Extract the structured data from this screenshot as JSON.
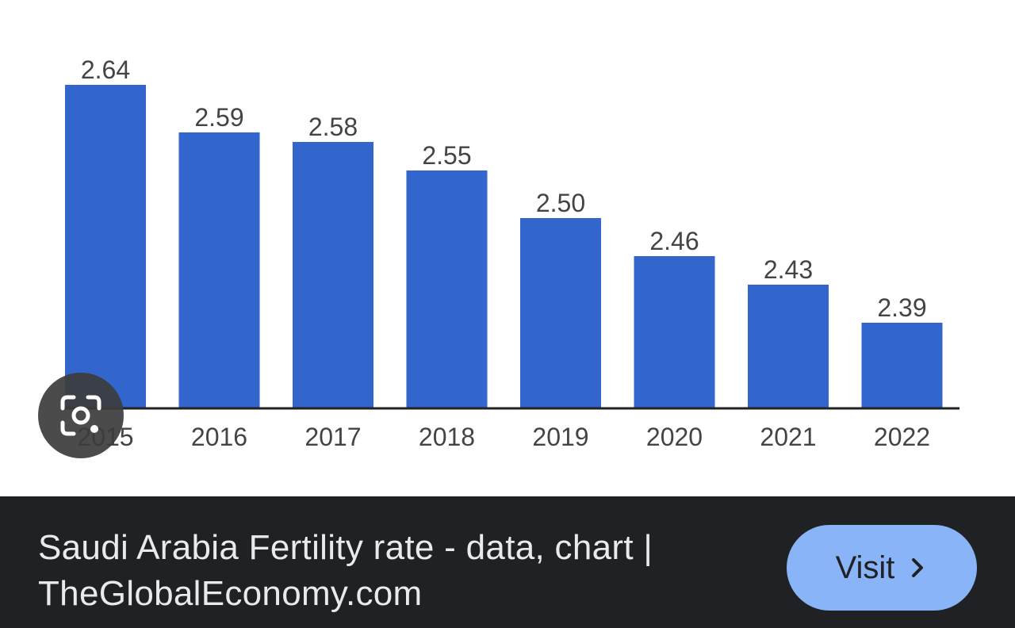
{
  "chart_data": {
    "type": "bar",
    "categories": [
      "2015",
      "2016",
      "2017",
      "2018",
      "2019",
      "2020",
      "2021",
      "2022"
    ],
    "values": [
      2.64,
      2.59,
      2.58,
      2.55,
      2.5,
      2.46,
      2.43,
      2.39
    ],
    "value_labels": [
      "2.64",
      "2.59",
      "2.58",
      "2.55",
      "2.50",
      "2.46",
      "2.43",
      "2.39"
    ],
    "ylim": [
      2.3,
      2.68
    ],
    "grid": false,
    "bar_color": "#3366cc"
  },
  "result": {
    "caption": "Saudi Arabia Fertility rate - data, chart | TheGlobalEconomy.com",
    "visit_label": "Visit"
  },
  "icons": {
    "lens": "lens-icon",
    "chevron": "chevron-right-icon"
  },
  "colors": {
    "footer_bg": "#202124",
    "visit_bg": "#8ab4f8",
    "lens_bg": "#3c3c3c"
  }
}
